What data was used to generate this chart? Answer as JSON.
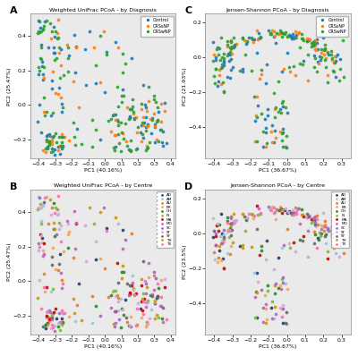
{
  "title_A": "Weighted UniFrac PCoA - by Diagnosis",
  "title_B": "Weighted UniFrac PCoA - by Centre",
  "title_C": "Jensen-Shannon PCoA - by Diagnosis",
  "title_D": "Jensen-Shannon PCoA - by Centre",
  "xlabel_AB": "PC1 (40.16%)",
  "ylabel_AB": "PC2 (25.47%)",
  "xlabel_CD": "PC1 (36.67%)",
  "ylabel_C": "PC2 (21.93%)",
  "ylabel_D": "PC2 (23.5%)",
  "xlim_AB": [
    -0.45,
    0.43
  ],
  "ylim_AB": [
    -0.31,
    0.53
  ],
  "xlim_CD": [
    -0.45,
    0.35
  ],
  "ylim_C": [
    -0.58,
    0.25
  ],
  "ylim_D": [
    -0.58,
    0.25
  ],
  "xticks_AB": [
    -0.4,
    -0.3,
    -0.2,
    -0.1,
    0.0,
    0.1,
    0.2,
    0.3,
    0.4
  ],
  "yticks_AB": [
    -0.2,
    0.0,
    0.2,
    0.4
  ],
  "xticks_CD": [
    -0.4,
    -0.3,
    -0.2,
    -0.1,
    0.0,
    0.1,
    0.2,
    0.3
  ],
  "yticks_CD": [
    -0.4,
    -0.2,
    0.0,
    0.2
  ],
  "diag_colors": {
    "Control": "#1f77b4",
    "CRSsNP": "#ff7f0e",
    "CRSwNP": "#2ca02c"
  },
  "centre_colors": {
    "AD": "#1a3f6f",
    "AM": "#9bc4e2",
    "AU": "#e07b2a",
    "BR": "#f4a460",
    "CH": "#228B22",
    "IN": "#7cba3a",
    "MA": "#cc0000",
    "MO": "#c060c0",
    "SC": "#9966cc",
    "ST": "#dda0dd",
    "SY": "#666666",
    "TH": "#c8960c",
    "TX": "#ff69b4"
  },
  "bg_color": "#eaeaea",
  "marker_size": 7,
  "alpha": 0.9
}
